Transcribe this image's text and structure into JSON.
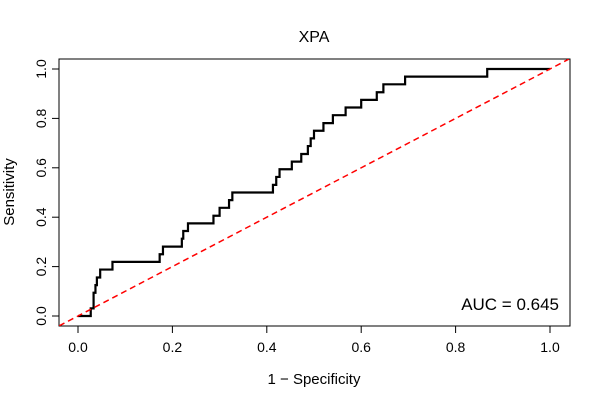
{
  "chart_data": {
    "type": "line",
    "title": "XPA",
    "xlabel": "1 − Specificity",
    "ylabel": "Sensitivity",
    "xlim": [
      0.0,
      1.0
    ],
    "ylim": [
      0.0,
      1.0
    ],
    "x_ticks": [
      "0.0",
      "0.2",
      "0.4",
      "0.6",
      "0.8",
      "1.0"
    ],
    "y_ticks": [
      "0.0",
      "0.2",
      "0.4",
      "0.6",
      "0.8",
      "1.0"
    ],
    "annotation": "AUC = 0.645",
    "grid": false,
    "series": [
      {
        "style": "solid",
        "color": "#000000",
        "points": [
          [
            0.0,
            0.0
          ],
          [
            0.027,
            0.0
          ],
          [
            0.027,
            0.031
          ],
          [
            0.033,
            0.031
          ],
          [
            0.033,
            0.094
          ],
          [
            0.037,
            0.094
          ],
          [
            0.037,
            0.125
          ],
          [
            0.04,
            0.125
          ],
          [
            0.04,
            0.156
          ],
          [
            0.047,
            0.156
          ],
          [
            0.047,
            0.188
          ],
          [
            0.073,
            0.188
          ],
          [
            0.073,
            0.219
          ],
          [
            0.173,
            0.219
          ],
          [
            0.173,
            0.25
          ],
          [
            0.18,
            0.25
          ],
          [
            0.18,
            0.281
          ],
          [
            0.22,
            0.281
          ],
          [
            0.22,
            0.313
          ],
          [
            0.223,
            0.313
          ],
          [
            0.223,
            0.344
          ],
          [
            0.233,
            0.344
          ],
          [
            0.233,
            0.375
          ],
          [
            0.287,
            0.375
          ],
          [
            0.287,
            0.406
          ],
          [
            0.3,
            0.406
          ],
          [
            0.3,
            0.438
          ],
          [
            0.32,
            0.438
          ],
          [
            0.32,
            0.469
          ],
          [
            0.327,
            0.469
          ],
          [
            0.327,
            0.5
          ],
          [
            0.413,
            0.5
          ],
          [
            0.413,
            0.531
          ],
          [
            0.42,
            0.531
          ],
          [
            0.42,
            0.563
          ],
          [
            0.427,
            0.563
          ],
          [
            0.427,
            0.594
          ],
          [
            0.453,
            0.594
          ],
          [
            0.453,
            0.625
          ],
          [
            0.473,
            0.625
          ],
          [
            0.473,
            0.656
          ],
          [
            0.487,
            0.656
          ],
          [
            0.487,
            0.688
          ],
          [
            0.493,
            0.688
          ],
          [
            0.493,
            0.719
          ],
          [
            0.5,
            0.719
          ],
          [
            0.5,
            0.75
          ],
          [
            0.52,
            0.75
          ],
          [
            0.52,
            0.781
          ],
          [
            0.54,
            0.781
          ],
          [
            0.54,
            0.813
          ],
          [
            0.567,
            0.813
          ],
          [
            0.567,
            0.844
          ],
          [
            0.6,
            0.844
          ],
          [
            0.6,
            0.875
          ],
          [
            0.633,
            0.875
          ],
          [
            0.633,
            0.906
          ],
          [
            0.647,
            0.906
          ],
          [
            0.647,
            0.938
          ],
          [
            0.693,
            0.938
          ],
          [
            0.693,
            0.969
          ],
          [
            0.867,
            0.969
          ],
          [
            0.867,
            1.0
          ],
          [
            1.0,
            1.0
          ]
        ]
      },
      {
        "style": "dashed",
        "color": "#ff0000",
        "points": [
          [
            -0.04,
            -0.04
          ],
          [
            1.04,
            1.04
          ]
        ]
      }
    ]
  }
}
